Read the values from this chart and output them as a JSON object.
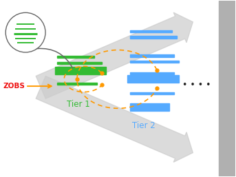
{
  "bg_color": "#ffffff",
  "arrow_color": "#cccccc",
  "zobs_color": "#ee1111",
  "green_color": "#33bb33",
  "green_dark": "#228822",
  "blue_color": "#55aaff",
  "orange_color": "#ff9900",
  "dark_gray": "#666666",
  "tier1_label": "Tier 1",
  "tier2_label": "Tier 2",
  "zobs_label": "ZOBS",
  "tier1_color": "#33bb33",
  "tier2_color": "#55aaff",
  "sidebar_color": "#b0b0b0",
  "figw": 3.43,
  "figh": 2.57,
  "dpi": 100
}
